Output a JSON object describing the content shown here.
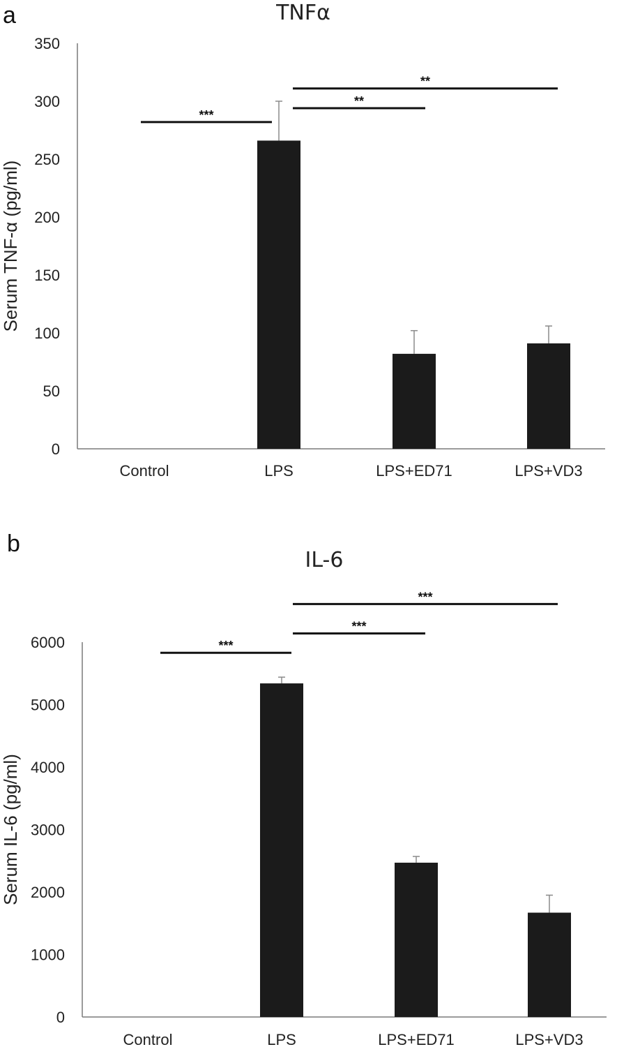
{
  "chart_data": [
    {
      "panel": "a",
      "type": "bar",
      "title": "TNFα",
      "xlabel": "",
      "ylabel": "Serum TNF-α (pg/ml)",
      "categories": [
        "Control",
        "LPS",
        "LPS+ED71",
        "LPS+VD3"
      ],
      "values": [
        0,
        266,
        82,
        91
      ],
      "errors": [
        0,
        34,
        20,
        15
      ],
      "ylim": [
        0,
        350
      ],
      "yticks": [
        0,
        50,
        100,
        150,
        200,
        250,
        300,
        350
      ],
      "bar_color": "#1b1b1b",
      "grid": false,
      "significance": [
        {
          "from": 0,
          "to": 1,
          "label": "***",
          "y": 282
        },
        {
          "from": 1,
          "to": 2,
          "label": "**",
          "y": 294
        },
        {
          "from": 1,
          "to": 3,
          "label": "**",
          "y": 311
        }
      ]
    },
    {
      "panel": "b",
      "type": "bar",
      "title": "IL-6",
      "xlabel": "",
      "ylabel": "Serum IL-6 (pg/ml)",
      "categories": [
        "Control",
        "LPS",
        "LPS+ED71",
        "LPS+VD3"
      ],
      "values": [
        0,
        5340,
        2470,
        1670
      ],
      "errors": [
        0,
        100,
        100,
        280
      ],
      "ylim": [
        0,
        6000
      ],
      "yticks": [
        0,
        1000,
        2000,
        3000,
        4000,
        5000,
        6000
      ],
      "bar_color": "#1b1b1b",
      "grid": false,
      "significance": [
        {
          "from": 0,
          "to": 1,
          "label": "***",
          "y": 5830
        },
        {
          "from": 1,
          "to": 2,
          "label": "***",
          "y": 6140
        },
        {
          "from": 1,
          "to": 3,
          "label": "***",
          "y": 6610
        }
      ]
    }
  ]
}
